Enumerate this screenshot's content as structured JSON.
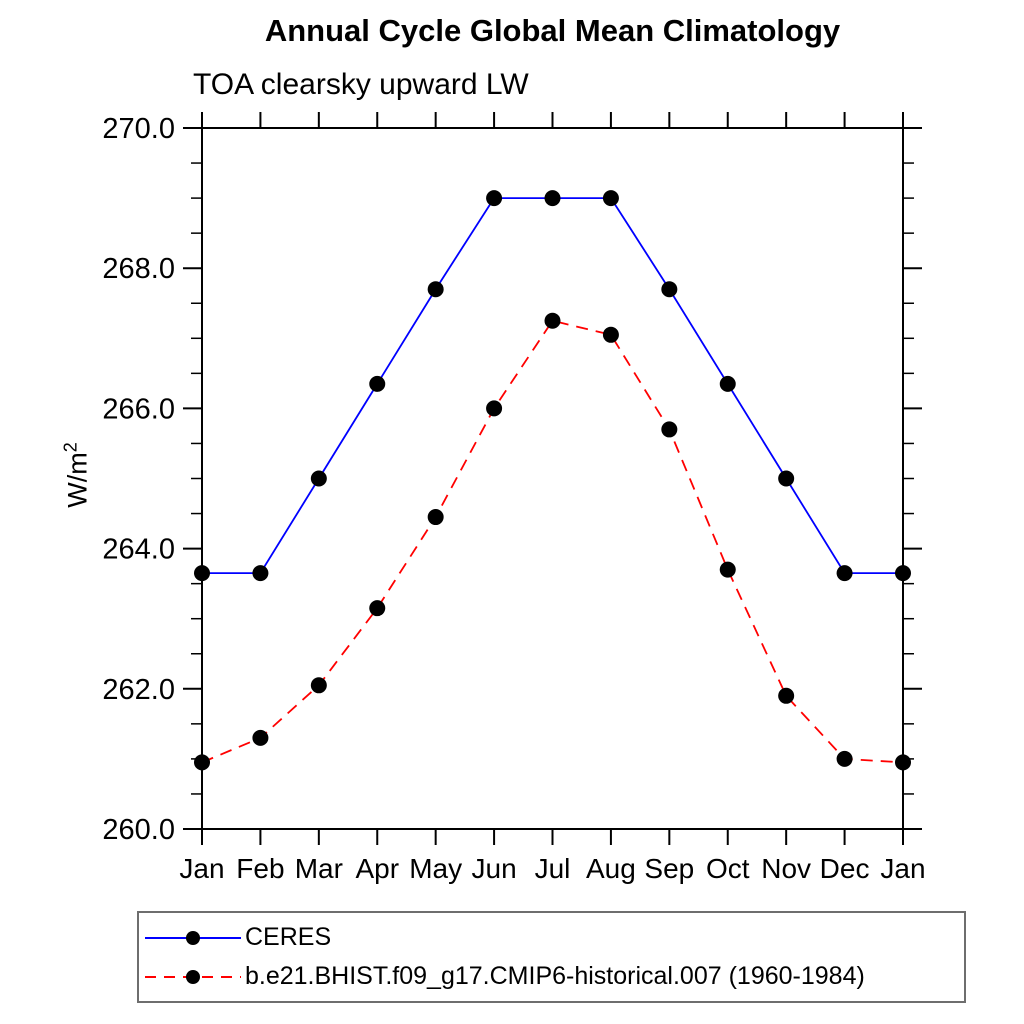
{
  "chart_data": {
    "type": "line",
    "title": "Annual Cycle Global Mean Climatology",
    "subtitle": "TOA clearsky upward LW",
    "xlabel": "",
    "ylabel": "W/m²",
    "ylabel_base": "W/m",
    "ylabel_sup": "2",
    "categories": [
      "Jan",
      "Feb",
      "Mar",
      "Apr",
      "May",
      "Jun",
      "Jul",
      "Aug",
      "Sep",
      "Oct",
      "Nov",
      "Dec",
      "Jan"
    ],
    "series": [
      {
        "name": "CERES",
        "color": "#0000ff",
        "line_style": "solid",
        "marker_color": "#000000",
        "values": [
          263.65,
          263.65,
          265.0,
          266.35,
          267.7,
          269.0,
          269.0,
          269.0,
          267.7,
          266.35,
          265.0,
          263.65,
          263.65
        ]
      },
      {
        "name": "b.e21.BHIST.f09_g17.CMIP6-historical.007 (1960-1984)",
        "color": "#ff0000",
        "line_style": "dashed",
        "marker_color": "#000000",
        "values": [
          260.95,
          261.3,
          262.05,
          263.15,
          264.45,
          266.0,
          267.25,
          267.05,
          265.7,
          263.7,
          261.9,
          261.0,
          260.95
        ]
      }
    ],
    "ylim": [
      260.0,
      270.0
    ],
    "ytick_major_values": [
      260,
      262,
      264,
      266,
      268,
      270
    ],
    "ytick_major_labels": [
      "260.0",
      "262.0",
      "264.0",
      "266.0",
      "268.0",
      "270.0"
    ],
    "ytick_minor_step": 0.5,
    "grid": false,
    "legend_position": "bottom",
    "axis_color": "#000000",
    "text_color": "#000000"
  }
}
